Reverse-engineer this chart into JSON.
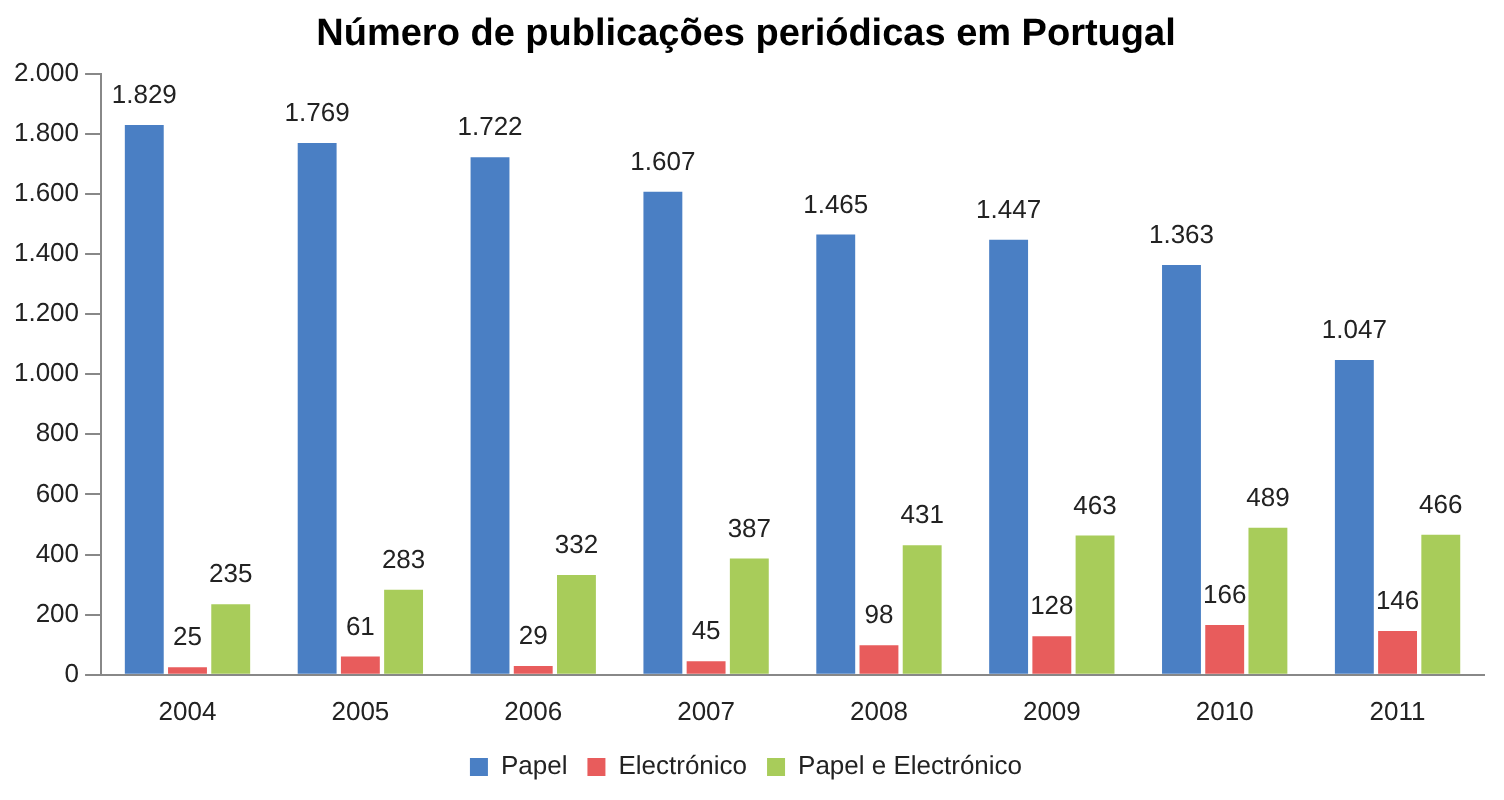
{
  "chart_data": {
    "type": "bar",
    "title": "Número de publicações periódicas em Portugal",
    "categories": [
      "2004",
      "2005",
      "2006",
      "2007",
      "2008",
      "2009",
      "2010",
      "2011"
    ],
    "series": [
      {
        "name": "Papel",
        "color": "#4a7fc4",
        "values": [
          1829,
          1769,
          1722,
          1607,
          1465,
          1447,
          1363,
          1047
        ],
        "value_labels": [
          "1.829",
          "1.769",
          "1.722",
          "1.607",
          "1.465",
          "1.447",
          "1.363",
          "1.047"
        ]
      },
      {
        "name": "Electrónico",
        "color": "#e85c5c",
        "values": [
          25,
          61,
          29,
          45,
          98,
          128,
          166,
          146
        ],
        "value_labels": [
          "25",
          "61",
          "29",
          "45",
          "98",
          "128",
          "166",
          "146"
        ]
      },
      {
        "name": "Papel e Electrónico",
        "color": "#a8cc5a",
        "values": [
          235,
          283,
          332,
          387,
          431,
          463,
          489,
          466
        ],
        "value_labels": [
          "235",
          "283",
          "332",
          "387",
          "431",
          "463",
          "489",
          "466"
        ]
      }
    ],
    "ylim": [
      0,
      2000
    ],
    "yticks": [
      {
        "value": 0,
        "label": "0"
      },
      {
        "value": 200,
        "label": "200"
      },
      {
        "value": 400,
        "label": "400"
      },
      {
        "value": 600,
        "label": "600"
      },
      {
        "value": 800,
        "label": "800"
      },
      {
        "value": 1000,
        "label": "1.000"
      },
      {
        "value": 1200,
        "label": "1.200"
      },
      {
        "value": 1400,
        "label": "1.400"
      },
      {
        "value": 1600,
        "label": "1.600"
      },
      {
        "value": 1800,
        "label": "1.800"
      },
      {
        "value": 2000,
        "label": "2.000"
      }
    ],
    "grid": false,
    "legend": "bottom"
  }
}
